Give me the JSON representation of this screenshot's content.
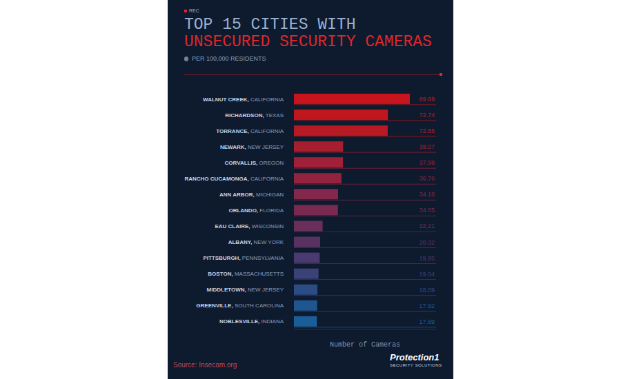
{
  "chart_data": {
    "type": "bar",
    "orientation": "horizontal",
    "rec_label": "REC",
    "title": [
      "TOP 15 CITIES WITH",
      "UNSECURED SECURITY CAMERAS"
    ],
    "subtitle": "PER 100,000 RESIDENTS",
    "categories": [
      "WALNUT CREEK, CALIFORNIA",
      "RICHARDSON, TEXAS",
      "TORRANCE, CALIFORNIA",
      "NEWARK, NEW JERSEY",
      "CORVALLIS, OREGON",
      "RANCHO CUCAMONGA, CALIFORNIA",
      "ANN ARBOR, MICHIGAN",
      "ORLANDO, FLORIDA",
      "EAU CLAIRE, WISCONSIN",
      "ALBANY, NEW YORK",
      "PITTSBURGH, PENNSYLVANIA",
      "BOSTON, MASSACHUSETTS",
      "MIDDLETOWN, NEW JERSEY",
      "GREENVILLE, SOUTH CAROLINA",
      "NOBLESVILLE, INDIANA"
    ],
    "values": [
      89.69,
      72.74,
      72.55,
      38.07,
      37.98,
      36.76,
      34.18,
      34.05,
      22.21,
      20.32,
      19.95,
      19.04,
      18.09,
      17.92,
      17.69
    ],
    "colors": [
      "#c8141c",
      "#c0161e",
      "#b81a24",
      "#a51f2e",
      "#a0203a",
      "#92233f",
      "#83284a",
      "#7a2a50",
      "#6a2e5a",
      "#5a3262",
      "#4a3a70",
      "#3a4278",
      "#2c4c86",
      "#1f5690",
      "#1a5e98"
    ],
    "xlim": [
      0,
      110
    ],
    "tick_labels": "y",
    "x_label": "Number of Cameras",
    "data_labels": true,
    "grid": false,
    "source": "Source: Insecam.org",
    "logo": {
      "name": "Protection1",
      "tagline": "SECURITY SOLUTIONS"
    }
  }
}
